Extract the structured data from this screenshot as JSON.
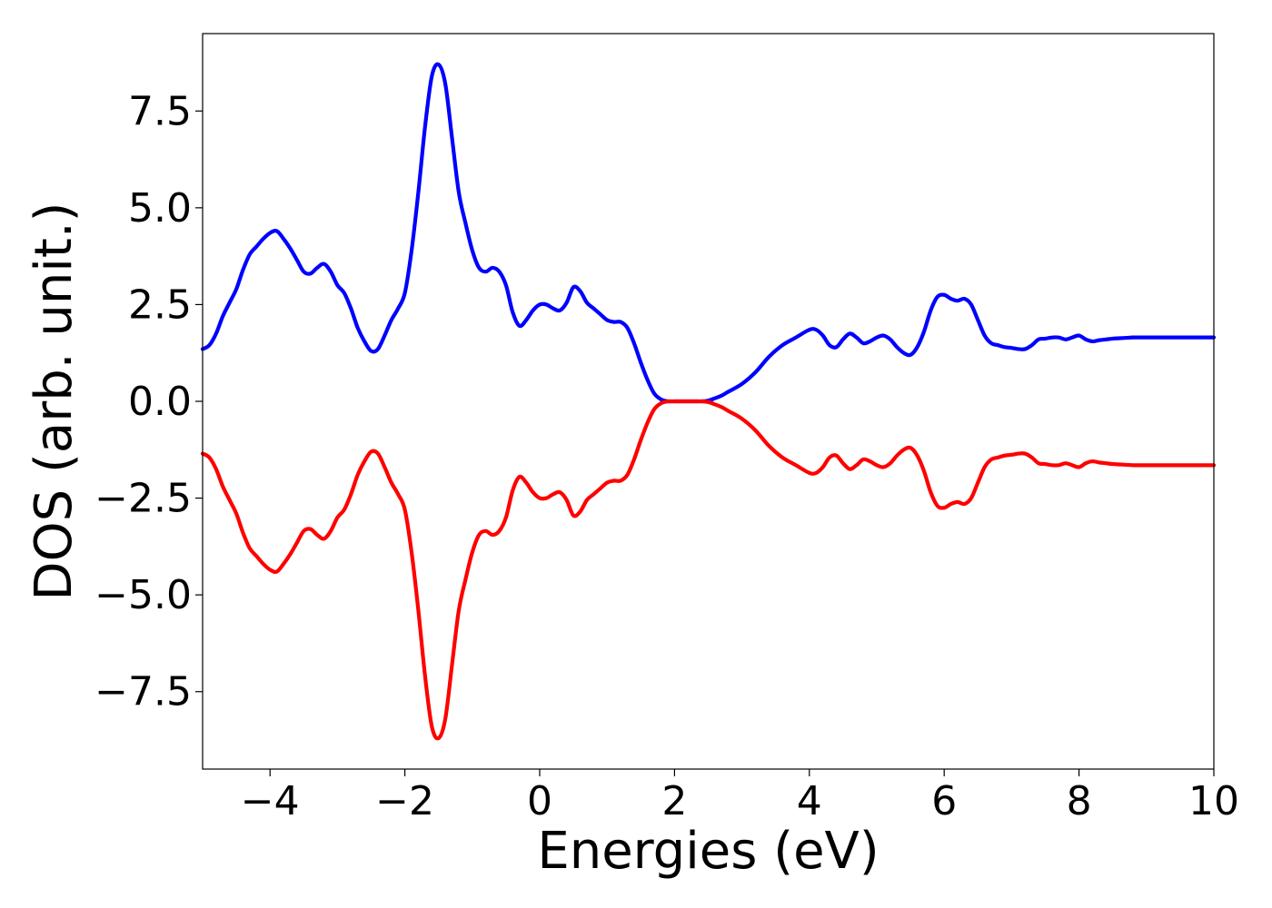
{
  "chart_data": {
    "type": "line",
    "title": "",
    "xlabel": "Energies (eV)",
    "ylabel": "DOS (arb. unit.)",
    "xlim": [
      -5,
      10
    ],
    "ylim": [
      -9.5,
      9.5
    ],
    "grid": false,
    "x_ticks": [
      -4,
      -2,
      0,
      2,
      4,
      6,
      8,
      10
    ],
    "x_tick_labels": [
      "−4",
      "−2",
      "0",
      "2",
      "4",
      "6",
      "8",
      "10"
    ],
    "y_ticks": [
      7.5,
      5.0,
      2.5,
      0.0,
      -2.5,
      -5.0,
      -7.5
    ],
    "y_tick_labels": [
      "7.5",
      "5.0",
      "2.5",
      "0.0",
      "−2.5",
      "−5.0",
      "−7.5"
    ],
    "series": [
      {
        "color": "#0000ff",
        "x": [
          -5.0,
          -4.9,
          -4.8,
          -4.7,
          -4.6,
          -4.5,
          -4.4,
          -4.3,
          -4.2,
          -4.1,
          -4.0,
          -3.9,
          -3.8,
          -3.7,
          -3.6,
          -3.5,
          -3.4,
          -3.3,
          -3.2,
          -3.1,
          -3.0,
          -2.9,
          -2.8,
          -2.7,
          -2.6,
          -2.5,
          -2.4,
          -2.3,
          -2.2,
          -2.1,
          -2.0,
          -1.9,
          -1.8,
          -1.7,
          -1.6,
          -1.5,
          -1.4,
          -1.3,
          -1.2,
          -1.1,
          -1.0,
          -0.9,
          -0.8,
          -0.7,
          -0.6,
          -0.5,
          -0.4,
          -0.3,
          -0.2,
          -0.1,
          0.0,
          0.1,
          0.2,
          0.3,
          0.4,
          0.5,
          0.6,
          0.7,
          0.8,
          0.9,
          1.0,
          1.1,
          1.2,
          1.3,
          1.4,
          1.5,
          1.6,
          1.7,
          1.8,
          1.9,
          2.0,
          2.1,
          2.2,
          2.3,
          2.4,
          2.5,
          2.6,
          2.7,
          2.8,
          3.0,
          3.2,
          3.4,
          3.6,
          3.8,
          4.0,
          4.1,
          4.2,
          4.3,
          4.4,
          4.5,
          4.6,
          4.7,
          4.8,
          4.9,
          5.0,
          5.1,
          5.2,
          5.3,
          5.4,
          5.5,
          5.6,
          5.7,
          5.8,
          5.9,
          6.0,
          6.1,
          6.2,
          6.3,
          6.4,
          6.5,
          6.6,
          6.7,
          6.8,
          6.9,
          7.0,
          7.1,
          7.2,
          7.3,
          7.4,
          7.5,
          7.6,
          7.7,
          7.8,
          7.9,
          8.0,
          8.1,
          8.2,
          8.3,
          8.4,
          8.5,
          8.6,
          8.7,
          8.8,
          8.9,
          9.0,
          9.2,
          9.4,
          9.6,
          9.8,
          10.0
        ],
        "y": [
          1.35,
          1.45,
          1.75,
          2.2,
          2.55,
          2.9,
          3.4,
          3.8,
          4.0,
          4.2,
          4.35,
          4.4,
          4.2,
          3.95,
          3.65,
          3.35,
          3.3,
          3.45,
          3.55,
          3.35,
          3.0,
          2.8,
          2.4,
          1.9,
          1.55,
          1.3,
          1.35,
          1.7,
          2.1,
          2.4,
          2.8,
          3.9,
          5.4,
          7.1,
          8.4,
          8.7,
          8.2,
          6.8,
          5.4,
          4.6,
          3.9,
          3.45,
          3.35,
          3.45,
          3.35,
          3.0,
          2.3,
          1.95,
          2.1,
          2.35,
          2.5,
          2.5,
          2.4,
          2.35,
          2.55,
          2.95,
          2.85,
          2.55,
          2.4,
          2.25,
          2.1,
          2.05,
          2.05,
          1.9,
          1.5,
          1.0,
          0.55,
          0.2,
          0.05,
          0.0,
          0.0,
          0.0,
          0.0,
          0.0,
          0.0,
          0.02,
          0.08,
          0.15,
          0.25,
          0.45,
          0.75,
          1.15,
          1.45,
          1.65,
          1.85,
          1.85,
          1.7,
          1.45,
          1.4,
          1.6,
          1.75,
          1.65,
          1.5,
          1.55,
          1.65,
          1.7,
          1.6,
          1.4,
          1.25,
          1.2,
          1.4,
          1.8,
          2.35,
          2.7,
          2.75,
          2.65,
          2.6,
          2.65,
          2.5,
          2.1,
          1.7,
          1.5,
          1.45,
          1.4,
          1.38,
          1.35,
          1.35,
          1.45,
          1.6,
          1.62,
          1.65,
          1.65,
          1.6,
          1.65,
          1.7,
          1.6,
          1.55,
          1.58,
          1.6,
          1.62,
          1.63,
          1.64,
          1.65,
          1.65,
          1.65,
          1.65,
          1.65,
          1.65,
          1.65,
          1.65
        ]
      },
      {
        "color": "#ff0000",
        "x": [
          -5.0,
          -4.9,
          -4.8,
          -4.7,
          -4.6,
          -4.5,
          -4.4,
          -4.3,
          -4.2,
          -4.1,
          -4.0,
          -3.9,
          -3.8,
          -3.7,
          -3.6,
          -3.5,
          -3.4,
          -3.3,
          -3.2,
          -3.1,
          -3.0,
          -2.9,
          -2.8,
          -2.7,
          -2.6,
          -2.5,
          -2.4,
          -2.3,
          -2.2,
          -2.1,
          -2.0,
          -1.9,
          -1.8,
          -1.7,
          -1.6,
          -1.5,
          -1.4,
          -1.3,
          -1.2,
          -1.1,
          -1.0,
          -0.9,
          -0.8,
          -0.7,
          -0.6,
          -0.5,
          -0.4,
          -0.3,
          -0.2,
          -0.1,
          0.0,
          0.1,
          0.2,
          0.3,
          0.4,
          0.5,
          0.6,
          0.7,
          0.8,
          0.9,
          1.0,
          1.1,
          1.2,
          1.3,
          1.4,
          1.5,
          1.6,
          1.7,
          1.8,
          1.9,
          2.0,
          2.1,
          2.2,
          2.3,
          2.4,
          2.5,
          2.6,
          2.7,
          2.8,
          3.0,
          3.2,
          3.4,
          3.6,
          3.8,
          4.0,
          4.1,
          4.2,
          4.3,
          4.4,
          4.5,
          4.6,
          4.7,
          4.8,
          4.9,
          5.0,
          5.1,
          5.2,
          5.3,
          5.4,
          5.5,
          5.6,
          5.7,
          5.8,
          5.9,
          6.0,
          6.1,
          6.2,
          6.3,
          6.4,
          6.5,
          6.6,
          6.7,
          6.8,
          6.9,
          7.0,
          7.1,
          7.2,
          7.3,
          7.4,
          7.5,
          7.6,
          7.7,
          7.8,
          7.9,
          8.0,
          8.1,
          8.2,
          8.3,
          8.4,
          8.5,
          8.6,
          8.7,
          8.8,
          8.9,
          9.0,
          9.2,
          9.4,
          9.6,
          9.8,
          10.0
        ],
        "y": [
          -1.35,
          -1.45,
          -1.75,
          -2.2,
          -2.55,
          -2.9,
          -3.4,
          -3.8,
          -4.0,
          -4.2,
          -4.35,
          -4.4,
          -4.2,
          -3.95,
          -3.65,
          -3.35,
          -3.3,
          -3.45,
          -3.55,
          -3.35,
          -3.0,
          -2.8,
          -2.4,
          -1.9,
          -1.55,
          -1.3,
          -1.35,
          -1.7,
          -2.1,
          -2.4,
          -2.8,
          -3.9,
          -5.4,
          -7.1,
          -8.4,
          -8.7,
          -8.2,
          -6.8,
          -5.4,
          -4.6,
          -3.9,
          -3.45,
          -3.35,
          -3.45,
          -3.35,
          -3.0,
          -2.3,
          -1.95,
          -2.1,
          -2.35,
          -2.5,
          -2.5,
          -2.4,
          -2.35,
          -2.55,
          -2.95,
          -2.85,
          -2.55,
          -2.4,
          -2.25,
          -2.1,
          -2.05,
          -2.05,
          -1.9,
          -1.5,
          -1.0,
          -0.55,
          -0.2,
          -0.05,
          0.0,
          0.0,
          0.0,
          0.0,
          0.0,
          0.0,
          -0.02,
          -0.08,
          -0.15,
          -0.25,
          -0.45,
          -0.75,
          -1.15,
          -1.45,
          -1.65,
          -1.85,
          -1.85,
          -1.7,
          -1.45,
          -1.4,
          -1.6,
          -1.75,
          -1.65,
          -1.5,
          -1.55,
          -1.65,
          -1.7,
          -1.6,
          -1.4,
          -1.25,
          -1.2,
          -1.4,
          -1.8,
          -2.35,
          -2.7,
          -2.75,
          -2.65,
          -2.6,
          -2.65,
          -2.5,
          -2.1,
          -1.7,
          -1.5,
          -1.45,
          -1.4,
          -1.38,
          -1.35,
          -1.35,
          -1.45,
          -1.6,
          -1.62,
          -1.65,
          -1.65,
          -1.6,
          -1.65,
          -1.7,
          -1.6,
          -1.55,
          -1.58,
          -1.6,
          -1.62,
          -1.63,
          -1.64,
          -1.65,
          -1.65,
          -1.65,
          -1.65,
          -1.65,
          -1.65,
          -1.65,
          -1.65
        ]
      }
    ]
  }
}
